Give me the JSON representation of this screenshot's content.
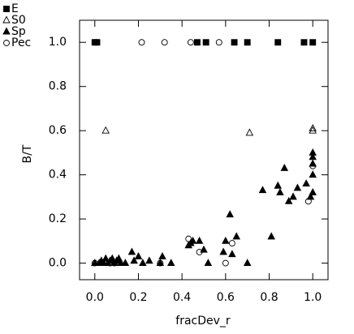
{
  "chart_data": {
    "type": "scatter",
    "xlabel": "fracDev_r",
    "ylabel": "B/T",
    "xlim": [
      -0.07,
      1.07
    ],
    "ylim": [
      -0.075,
      1.1
    ],
    "xticks": [
      {
        "value": 0,
        "label": "0.0"
      },
      {
        "value": 0.2,
        "label": "0.2"
      },
      {
        "value": 0.4,
        "label": "0.4"
      },
      {
        "value": 0.6,
        "label": "0.6"
      },
      {
        "value": 0.8,
        "label": "0.8"
      },
      {
        "value": 1,
        "label": "1.0"
      }
    ],
    "yticks": [
      {
        "value": 0,
        "label": "0.0"
      },
      {
        "value": 0.2,
        "label": "0.2"
      },
      {
        "value": 0.4,
        "label": "0.4"
      },
      {
        "value": 0.6,
        "label": "0.6"
      },
      {
        "value": 0.8,
        "label": "0.8"
      },
      {
        "value": 1,
        "label": "1.0"
      }
    ],
    "legend": "outside-top-left",
    "series": [
      {
        "name": "E",
        "marker": "square-filled",
        "color": "#000000",
        "x": [
          0.0,
          0.01,
          0.47,
          0.51,
          0.64,
          0.7,
          0.84,
          0.96,
          1.0
        ],
        "values": [
          1,
          1,
          1,
          1,
          1,
          1,
          1,
          1,
          1
        ]
      },
      {
        "name": "S0",
        "marker": "triangle-open",
        "color": "#000000",
        "x": [
          0.05,
          0.71,
          1.0,
          1.0
        ],
        "values": [
          0.6,
          0.59,
          0.61,
          0.6
        ]
      },
      {
        "name": "Sp",
        "marker": "triangle-filled",
        "color": "#000000",
        "x": [
          0.0,
          0.02,
          0.03,
          0.04,
          0.05,
          0.06,
          0.07,
          0.08,
          0.09,
          0.1,
          0.11,
          0.12,
          0.14,
          0.17,
          0.18,
          0.2,
          0.22,
          0.25,
          0.3,
          0.31,
          0.35,
          0.43,
          0.44,
          0.45,
          0.48,
          0.5,
          0.52,
          0.59,
          0.6,
          0.62,
          0.63,
          0.65,
          0.7,
          0.77,
          0.81,
          0.84,
          0.85,
          0.87,
          0.89,
          0.91,
          0.93,
          0.97,
          0.99,
          1.0,
          1.0,
          1.0,
          1.0,
          1.0
        ],
        "values": [
          0.0,
          0.0,
          0.01,
          0.0,
          0.02,
          0.0,
          0.01,
          0.02,
          0.0,
          0.01,
          0.02,
          0.0,
          0.0,
          0.05,
          0.01,
          0.03,
          0.0,
          0.01,
          0.0,
          0.03,
          0.0,
          0.08,
          0.09,
          0.1,
          0.1,
          0.06,
          0.0,
          0.05,
          0.1,
          0.22,
          0.04,
          0.12,
          0.0,
          0.33,
          0.12,
          0.35,
          0.32,
          0.43,
          0.28,
          0.3,
          0.34,
          0.36,
          0.3,
          0.32,
          0.4,
          0.45,
          0.48,
          0.5
        ]
      },
      {
        "name": "Pec",
        "marker": "circle-open",
        "color": "#000000",
        "x": [
          0.215,
          0.32,
          0.44,
          0.57,
          0.0,
          0.07,
          0.09,
          0.3,
          0.43,
          0.48,
          0.6,
          0.63,
          0.98,
          1.0
        ],
        "values": [
          1,
          1,
          1,
          1,
          0.0,
          0.0,
          0.0,
          0.0,
          0.11,
          0.05,
          0.0,
          0.09,
          0.28,
          0.44
        ]
      }
    ]
  }
}
